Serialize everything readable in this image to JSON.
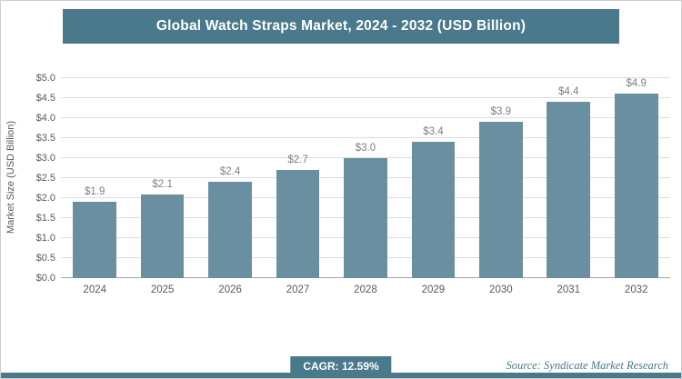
{
  "chart_data": {
    "type": "bar",
    "title": "Global Watch Straps Market, 2024 - 2032 (USD Billion)",
    "categories": [
      "2024",
      "2025",
      "2026",
      "2027",
      "2028",
      "2029",
      "2030",
      "2031",
      "2032"
    ],
    "values": [
      1.9,
      2.1,
      2.4,
      2.7,
      3.0,
      3.4,
      3.9,
      4.4,
      4.9
    ],
    "value_labels": [
      "$1.9",
      "$2.1",
      "$2.4",
      "$2.7",
      "$3.0",
      "$3.4",
      "$3.9",
      "$4.4",
      "$4.9"
    ],
    "xlabel": "",
    "ylabel": "Market Size (USD Billion)",
    "ylim": [
      0,
      5
    ],
    "ytick_labels": [
      "$0.0",
      "$0.5",
      "$1.0",
      "$1.5",
      "$2.0",
      "$2.5",
      "$3.0",
      "$3.5",
      "$4.0",
      "$4.5",
      "$5.0"
    ],
    "grid": true,
    "legend": false,
    "bar_color": "#6a8fa0",
    "accent_color": "#49798b"
  },
  "footer": {
    "cagr_label": "CAGR: 12.59%",
    "source": "Source: Syndicate Market Research"
  }
}
